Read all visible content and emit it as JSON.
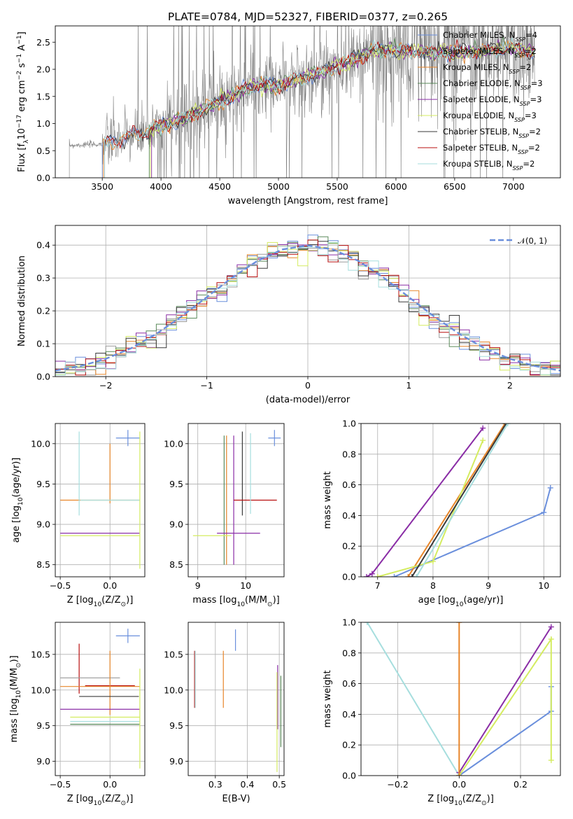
{
  "colors": {
    "chabrier_miles": "#6a8fdc",
    "salpeter_miles": "#9b9b9b",
    "kroupa_miles": "#e8862a",
    "chabrier_elodie": "#5a8a5a",
    "salpeter_elodie": "#8a2da6",
    "kroupa_elodie": "#d4ec60",
    "chabrier_stelib": "#3a3a3a",
    "salpeter_stelib": "#b80f0f",
    "kroupa_stelib": "#a6dede",
    "data": "#808080",
    "grid": "#b0b0b0"
  },
  "chart_data": [
    {
      "type": "line",
      "title": "PLATE=0784, MJD=52327, FIBERID=0377, z=0.265",
      "xlabel": "wavelength [Angstrom, rest frame]",
      "ylabel": "Flux [f$_\\lambda$10$^{-17}$ erg cm$^{-2}$ s$^{-1}$ A$^{-1}$]",
      "xlim": [
        3100,
        7400
      ],
      "ylim": [
        0,
        2.8
      ],
      "xticks": [
        3500,
        4000,
        4500,
        5000,
        5500,
        6000,
        6500,
        7000
      ],
      "yticks": [
        0.0,
        0.5,
        1.0,
        1.5,
        2.0,
        2.5
      ],
      "legend_position": "upper right",
      "series": [
        {
          "name": "Chabrier MILES, N$_{SSP}$=4"
        },
        {
          "name": "Salpeter MILES, N$_{SSP}$=2"
        },
        {
          "name": "Kroupa MILES, N$_{SSP}$=2"
        },
        {
          "name": "Chabrier ELODIE, N$_{SSP}$=3"
        },
        {
          "name": "Salpeter ELODIE, N$_{SSP}$=3"
        },
        {
          "name": "Kroupa ELODIE, N$_{SSP}$=3"
        },
        {
          "name": "Chabrier STELIB, N$_{SSP}$=2"
        },
        {
          "name": "Salpeter STELIB, N$_{SSP}$=2"
        },
        {
          "name": "Kroupa STELIB, N$_{SSP}$=2"
        }
      ],
      "data_start": 3220,
      "continuum_x": [
        3220,
        3500,
        3800,
        4000,
        4200,
        4500,
        4800,
        5000,
        5500,
        5800,
        6000,
        6500,
        7000,
        7200
      ],
      "continuum_y": [
        0.6,
        0.62,
        0.8,
        0.95,
        1.1,
        1.4,
        1.7,
        1.7,
        2.05,
        2.35,
        2.35,
        2.3,
        2.4,
        2.3
      ]
    },
    {
      "type": "line",
      "xlabel": "(data-model)/error",
      "ylabel": "Normed distribution",
      "xlim": [
        -2.5,
        2.5
      ],
      "ylim": [
        0,
        0.46
      ],
      "xticks": [
        -2,
        -1,
        0,
        1,
        2
      ],
      "yticks": [
        0.0,
        0.1,
        0.2,
        0.3,
        0.4
      ],
      "legend_label": "$\\mathcal{N}(0,1)$",
      "legend_position": "upper right",
      "bin_width": 0.1,
      "x_normal": [
        -2.5,
        -2.25,
        -2.0,
        -1.75,
        -1.5,
        -1.25,
        -1.0,
        -0.75,
        -0.5,
        -0.25,
        0.0,
        0.25,
        0.5,
        0.75,
        1.0,
        1.25,
        1.5,
        1.75,
        2.0,
        2.25,
        2.5
      ],
      "y_normal": [
        0.018,
        0.032,
        0.054,
        0.086,
        0.13,
        0.183,
        0.242,
        0.301,
        0.352,
        0.387,
        0.399,
        0.387,
        0.352,
        0.301,
        0.242,
        0.183,
        0.13,
        0.086,
        0.054,
        0.032,
        0.018
      ]
    },
    {
      "type": "scatter",
      "xlabel": "Z [log$_{10}$(Z/Z$_\\odot$)]",
      "ylabel": "age  [log$_{10}$(age/yr)]",
      "xlim": [
        -0.55,
        0.35
      ],
      "ylim": [
        8.35,
        10.25
      ],
      "xticks": [
        -0.5,
        0.0
      ],
      "yticks": [
        8.5,
        9.0,
        9.5,
        10.0
      ],
      "errorbars": [
        {
          "series": "chabrier_miles",
          "x": 0.18,
          "y": 10.07,
          "xerr": 0.12,
          "yerr": 0.1
        },
        {
          "series": "kroupa_miles",
          "x": 0.0,
          "y": 9.63,
          "xerr": 0.0,
          "yerr": 0.37
        },
        {
          "series": "kroupa_miles",
          "x": -0.1,
          "y": 9.3,
          "xerr": 0.4,
          "yerr": 0.0
        },
        {
          "series": "kroupa_stelib",
          "x": -0.31,
          "y": 9.63,
          "xerr": 0.0,
          "yerr": 0.52
        },
        {
          "series": "kroupa_stelib",
          "x": 0.0,
          "y": 9.3,
          "xerr": 0.3,
          "yerr": 0.0
        },
        {
          "series": "salpeter_elodie",
          "x": -0.1,
          "y": 8.89,
          "xerr": 0.4,
          "yerr": 0.0
        },
        {
          "series": "kroupa_elodie",
          "x": -0.1,
          "y": 8.86,
          "xerr": 0.4,
          "yerr": 0.0
        },
        {
          "series": "kroupa_elodie",
          "x": 0.3,
          "y": 9.3,
          "xerr": 0.0,
          "yerr": 0.85
        }
      ]
    },
    {
      "type": "scatter",
      "xlabel": "mass [log$_{10}$(M/M$_\\odot$)]",
      "xlim": [
        8.8,
        10.8
      ],
      "ylim": [
        8.35,
        10.25
      ],
      "xticks": [
        9,
        10
      ],
      "yticks": [
        8.5,
        9.0,
        9.5,
        10.0
      ],
      "errorbars": [
        {
          "series": "chabrier_miles",
          "x": 10.6,
          "y": 10.07,
          "xerr": 0.13,
          "yerr": 0.1
        },
        {
          "series": "chabrier_elodie",
          "x": 9.55,
          "y": 9.3,
          "xerr": 0.0,
          "yerr": 0.8
        },
        {
          "series": "kroupa_miles",
          "x": 9.6,
          "y": 9.3,
          "xerr": 0.0,
          "yerr": 0.8
        },
        {
          "series": "salpeter_elodie",
          "x": 9.75,
          "y": 9.3,
          "xerr": 0.0,
          "yerr": 0.8
        },
        {
          "series": "salpeter_elodie",
          "x": 9.85,
          "y": 8.89,
          "xerr": 0.45,
          "yerr": 0.0
        },
        {
          "series": "kroupa_elodie",
          "x": 9.3,
          "y": 8.86,
          "xerr": 0.4,
          "yerr": 0.0
        },
        {
          "series": "chabrier_stelib",
          "x": 9.93,
          "y": 9.63,
          "xerr": 0.0,
          "yerr": 0.52
        },
        {
          "series": "salpeter_stelib",
          "x": 10.2,
          "y": 9.3,
          "xerr": 0.45,
          "yerr": 0.0
        },
        {
          "series": "kroupa_stelib",
          "x": 10.1,
          "y": 9.63,
          "xerr": 0.0,
          "yerr": 0.5
        }
      ]
    },
    {
      "type": "line",
      "xlabel": "age  [log$_{10}$(age/yr)]",
      "ylabel": "mass weight",
      "xlim": [
        6.7,
        10.3
      ],
      "ylim": [
        0,
        1.0
      ],
      "xticks": [
        7,
        8,
        9,
        10
      ],
      "yticks": [
        0.0,
        0.2,
        0.4,
        0.6,
        0.8,
        1.0
      ],
      "series": [
        {
          "key": "chabrier_miles",
          "x": [
            7.3,
            10.0,
            10.12
          ],
          "y": [
            0.0,
            0.42,
            0.58
          ]
        },
        {
          "key": "salpeter_elodie",
          "x": [
            6.8,
            6.9,
            8.9
          ],
          "y": [
            0.0,
            0.02,
            0.97
          ]
        },
        {
          "key": "kroupa_miles",
          "x": [
            7.55,
            9.3
          ],
          "y": [
            0.0,
            1.0
          ]
        },
        {
          "key": "kroupa_elodie",
          "x": [
            7.0,
            8.0,
            8.9
          ],
          "y": [
            0.0,
            0.1,
            0.89
          ]
        },
        {
          "key": "chabrier_stelib",
          "x": [
            7.62,
            9.32
          ],
          "y": [
            0.0,
            1.0
          ]
        },
        {
          "key": "kroupa_stelib",
          "x": [
            7.7,
            9.35
          ],
          "y": [
            0.0,
            1.0
          ]
        }
      ]
    },
    {
      "type": "scatter",
      "xlabel": "Z [log$_{10}$(Z/Z$_\\odot$)]",
      "ylabel": "mass [log$_{10}$(M/M$_\\odot$)]",
      "xlim": [
        -0.55,
        0.35
      ],
      "ylim": [
        8.8,
        10.95
      ],
      "xticks": [
        -0.5,
        0.0
      ],
      "yticks": [
        9.0,
        9.5,
        10.0,
        10.5
      ],
      "errorbars": [
        {
          "series": "chabrier_miles",
          "x": 0.18,
          "y": 10.76,
          "xerr": 0.12,
          "yerr": 0.1
        },
        {
          "series": "salpeter_stelib",
          "x": -0.31,
          "y": 10.3,
          "xerr": 0.0,
          "yerr": 0.35
        },
        {
          "series": "salpeter_miles",
          "x": -0.2,
          "y": 10.17,
          "xerr": 0.3,
          "yerr": 0.0
        },
        {
          "series": "salpeter_stelib",
          "x": 0.0,
          "y": 10.06,
          "xerr": 0.25,
          "yerr": 0.0
        },
        {
          "series": "kroupa_miles",
          "x": -0.1,
          "y": 10.05,
          "xerr": 0.4,
          "yerr": 0.0
        },
        {
          "series": "kroupa_miles",
          "x": 0.0,
          "y": 10.1,
          "xerr": 0.0,
          "yerr": 0.45
        },
        {
          "series": "chabrier_stelib",
          "x": -0.01,
          "y": 9.91,
          "xerr": 0.3,
          "yerr": 0.0
        },
        {
          "series": "salpeter_elodie",
          "x": -0.1,
          "y": 9.73,
          "xerr": 0.4,
          "yerr": 0.0
        },
        {
          "series": "kroupa_elodie",
          "x": -0.05,
          "y": 9.62,
          "xerr": 0.35,
          "yerr": 0.0
        },
        {
          "series": "kroupa_stelib",
          "x": -0.05,
          "y": 9.56,
          "xerr": 0.35,
          "yerr": 0.0
        },
        {
          "series": "chabrier_elodie",
          "x": -0.05,
          "y": 9.52,
          "xerr": 0.35,
          "yerr": 0.0
        },
        {
          "series": "kroupa_elodie",
          "x": 0.3,
          "y": 9.6,
          "xerr": 0.0,
          "yerr": 0.7
        }
      ]
    },
    {
      "type": "scatter",
      "xlabel": "E(B-V)",
      "xlim": [
        0.215,
        0.515
      ],
      "ylim": [
        8.8,
        10.95
      ],
      "xticks": [
        0.3,
        0.4,
        0.5
      ],
      "yticks": [
        9.0,
        9.5,
        10.0,
        10.5
      ],
      "errorbars": [
        {
          "series": "chabrier_miles",
          "x": 0.363,
          "y": 10.7,
          "xerr": 0.0,
          "yerr": 0.15
        },
        {
          "series": "salpeter_stelib",
          "x": 0.235,
          "y": 10.15,
          "xerr": 0.0,
          "yerr": 0.4
        },
        {
          "series": "kroupa_stelib",
          "x": 0.237,
          "y": 10.15,
          "xerr": 0.0,
          "yerr": 0.4
        },
        {
          "series": "kroupa_miles",
          "x": 0.325,
          "y": 10.15,
          "xerr": 0.0,
          "yerr": 0.4
        },
        {
          "series": "salpeter_elodie",
          "x": 0.495,
          "y": 9.9,
          "xerr": 0.0,
          "yerr": 0.45
        },
        {
          "series": "kroupa_elodie",
          "x": 0.493,
          "y": 9.55,
          "xerr": 0.0,
          "yerr": 0.7
        },
        {
          "series": "chabrier_elodie",
          "x": 0.505,
          "y": 9.7,
          "xerr": 0.0,
          "yerr": 0.5
        }
      ]
    },
    {
      "type": "line",
      "xlabel": "Z [log$_{10}$(Z/Z$_\\odot$)]",
      "ylabel": "mass weight",
      "xlim": [
        -0.32,
        0.33
      ],
      "ylim": [
        0,
        1.0
      ],
      "xticks": [
        -0.2,
        0.0,
        0.2
      ],
      "yticks": [
        0.0,
        0.2,
        0.4,
        0.6,
        0.8,
        1.0
      ],
      "series": [
        {
          "key": "kroupa_stelib",
          "x": [
            -0.3,
            0.0
          ],
          "y": [
            1.0,
            0.0
          ]
        },
        {
          "key": "chabrier_miles",
          "x": [
            0.0,
            0.3,
            0.3
          ],
          "y": [
            0.0,
            0.42,
            0.58
          ]
        },
        {
          "key": "salpeter_elodie",
          "x": [
            0.0,
            0.3
          ],
          "y": [
            0.02,
            0.97
          ]
        },
        {
          "key": "kroupa_elodie",
          "x": [
            0.0,
            0.3,
            0.3
          ],
          "y": [
            0.0,
            0.89,
            0.1
          ]
        },
        {
          "key": "kroupa_miles",
          "x": [
            0.0,
            0.0
          ],
          "y": [
            0.0,
            1.0
          ]
        }
      ]
    }
  ]
}
